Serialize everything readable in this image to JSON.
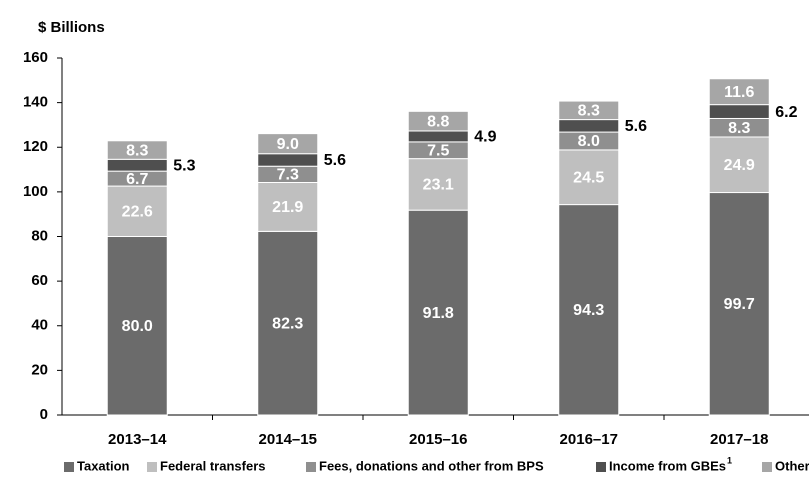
{
  "chart_data": {
    "type": "stacked_bar",
    "title": "$ Billions",
    "categories": [
      "2013–14",
      "2014–15",
      "2015–16",
      "2016–17",
      "2017–18"
    ],
    "series": [
      {
        "name": "Taxation",
        "color": "#6b6b6b",
        "values": [
          80.0,
          82.3,
          91.8,
          94.3,
          99.7
        ],
        "value_labels": [
          "80.0",
          "82.3",
          "91.8",
          "94.3",
          "99.7"
        ]
      },
      {
        "name": "Federal transfers",
        "color": "#bfbfbf",
        "values": [
          22.6,
          21.9,
          23.1,
          24.5,
          24.9
        ],
        "value_labels": [
          "22.6",
          "21.9",
          "23.1",
          "24.5",
          "24.9"
        ]
      },
      {
        "name": "Fees, donations and other from BPS",
        "color": "#8f8f8f",
        "values": [
          6.7,
          7.3,
          7.5,
          8.0,
          8.3
        ],
        "value_labels": [
          "6.7",
          "7.3",
          "7.5",
          "8.0",
          "8.3"
        ]
      },
      {
        "name": "Income from GBEs",
        "footnote": "1",
        "color": "#4f4f4f",
        "values": [
          5.3,
          5.6,
          4.9,
          5.6,
          6.2
        ],
        "value_labels": [
          "5.3",
          "5.6",
          "4.9",
          "5.6",
          "6.2"
        ],
        "label_position": "outside"
      },
      {
        "name": "Other",
        "color": "#a6a6a6",
        "values": [
          8.3,
          9.0,
          8.8,
          8.3,
          11.6
        ],
        "value_labels": [
          "8.3",
          "9.0",
          "8.8",
          "8.3",
          "11.6"
        ]
      }
    ],
    "ylim": [
      0,
      160
    ],
    "yticks": [
      0,
      20,
      40,
      60,
      80,
      100,
      120,
      140,
      160
    ],
    "grid": false
  }
}
